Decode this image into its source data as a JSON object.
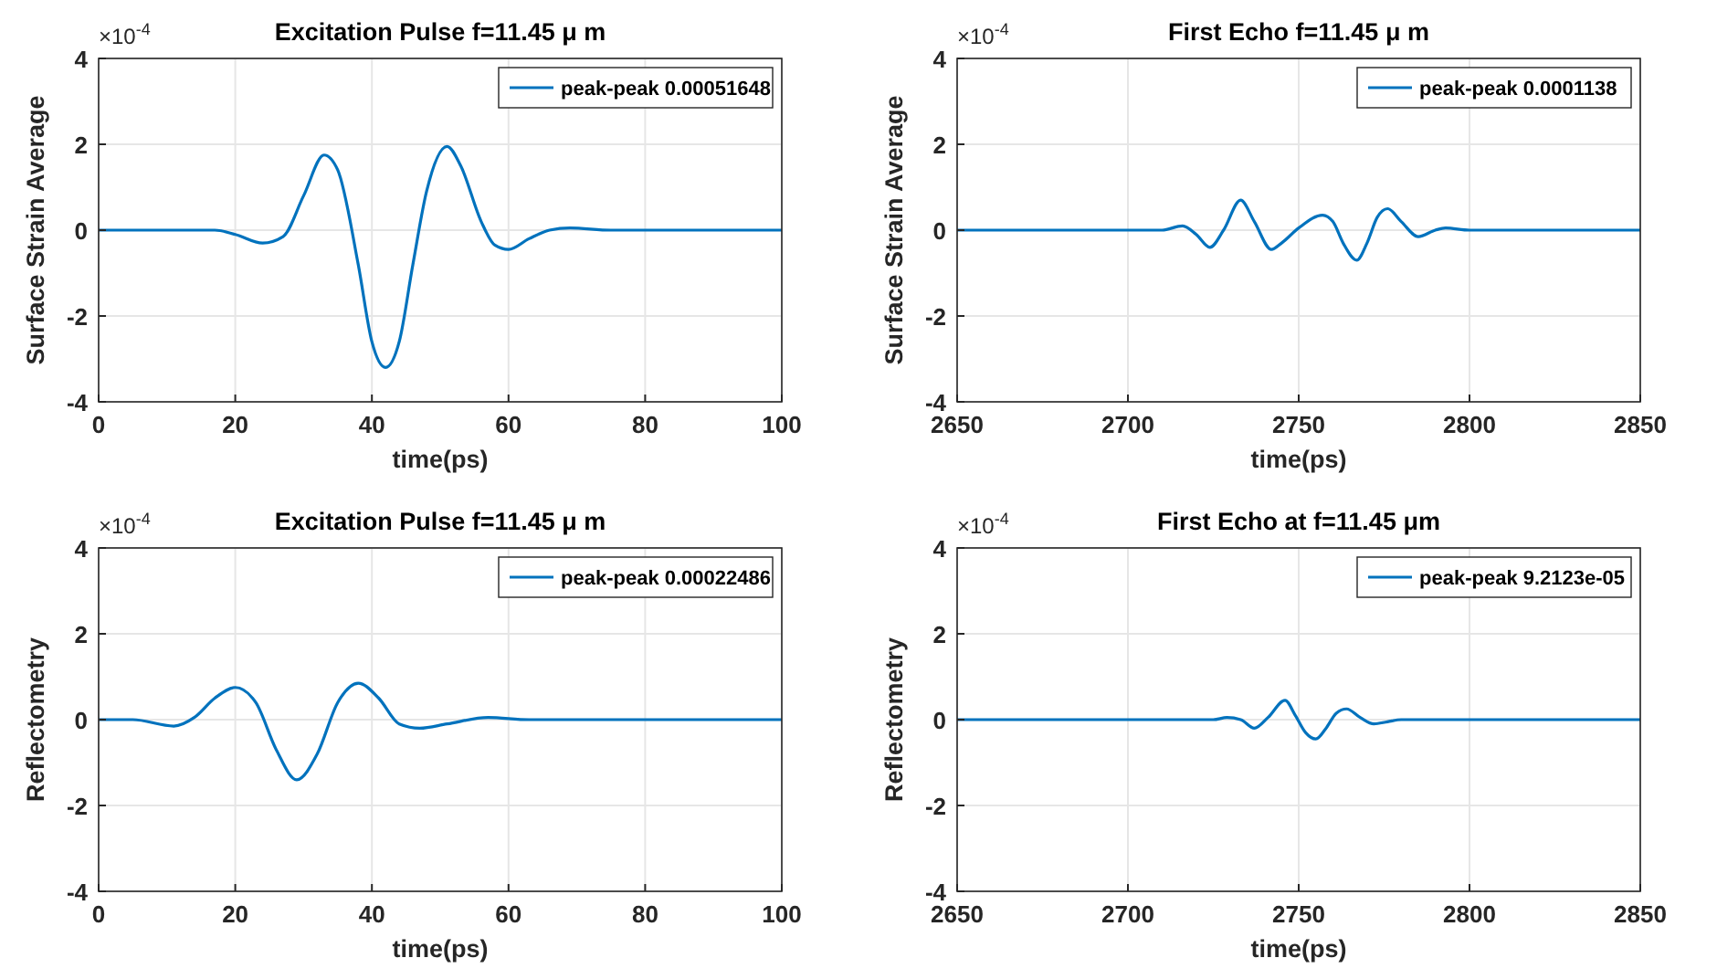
{
  "chart_data": [
    {
      "type": "line",
      "title": "Excitation Pulse f=11.45 μ m",
      "xlabel": "time(ps)",
      "ylabel": "Surface Strain Average",
      "annotations": [
        "×10$^{-4}$"
      ],
      "xlim": [
        0,
        100
      ],
      "xticks": [
        0,
        20,
        40,
        60,
        80,
        100
      ],
      "ylim": [
        -4,
        4
      ],
      "yticks": [
        -4,
        -2,
        0,
        2,
        4
      ],
      "grid": true,
      "legend": "top right",
      "line_style": "solid",
      "marker": "none",
      "series": [
        {
          "name": "peak-peak 0.00051648",
          "color": "#0072bd",
          "x": [
            0,
            10,
            17,
            20,
            24,
            27,
            30,
            33,
            35,
            38,
            40,
            42,
            44,
            46,
            48,
            51,
            53,
            56,
            58,
            60,
            63,
            66,
            69,
            75,
            100
          ],
          "values": [
            0,
            0,
            0,
            -0.1,
            -0.3,
            -0.15,
            0.8,
            1.75,
            1.4,
            -0.8,
            -2.6,
            -3.2,
            -2.6,
            -0.8,
            0.9,
            1.95,
            1.5,
            0.2,
            -0.35,
            -0.45,
            -0.2,
            0,
            0.05,
            0,
            0
          ]
        }
      ]
    },
    {
      "type": "line",
      "title": "First Echo f=11.45 μ m",
      "xlabel": "time(ps)",
      "ylabel": "Surface Strain Average",
      "annotations": [
        "×10$^{-4}$"
      ],
      "xlim": [
        2650,
        2850
      ],
      "xticks": [
        2650,
        2700,
        2750,
        2800,
        2850
      ],
      "ylim": [
        -4,
        4
      ],
      "yticks": [
        -4,
        -2,
        0,
        2,
        4
      ],
      "grid": true,
      "legend": "top right",
      "line_style": "solid",
      "marker": "none",
      "series": [
        {
          "name": "peak-peak 0.0001138",
          "color": "#0072bd",
          "x": [
            2650,
            2710,
            2716,
            2720,
            2724,
            2728,
            2733,
            2737,
            2742,
            2745,
            2750,
            2757,
            2760,
            2763,
            2767,
            2770,
            2773,
            2776,
            2780,
            2785,
            2790,
            2793,
            2800,
            2850
          ],
          "values": [
            0,
            0,
            0.1,
            -0.1,
            -0.4,
            0,
            0.7,
            0.2,
            -0.45,
            -0.3,
            0.05,
            0.35,
            0.2,
            -0.3,
            -0.7,
            -0.3,
            0.3,
            0.5,
            0.2,
            -0.15,
            0,
            0.05,
            0,
            0
          ]
        }
      ]
    },
    {
      "type": "line",
      "title": "Excitation Pulse f=11.45 μ m",
      "xlabel": "time(ps)",
      "ylabel": "Reflectometry",
      "annotations": [
        "×10$^{-4}$"
      ],
      "xlim": [
        0,
        100
      ],
      "xticks": [
        0,
        20,
        40,
        60,
        80,
        100
      ],
      "ylim": [
        -4,
        4
      ],
      "yticks": [
        -4,
        -2,
        0,
        2,
        4
      ],
      "grid": true,
      "legend": "top right",
      "line_style": "solid",
      "marker": "none",
      "series": [
        {
          "name": "peak-peak 0.00022486",
          "color": "#0072bd",
          "x": [
            0,
            5,
            11,
            14,
            17,
            20,
            23,
            26,
            29,
            32,
            35,
            38,
            41,
            44,
            47,
            51,
            57,
            63,
            100
          ],
          "values": [
            0,
            0,
            -0.15,
            0.05,
            0.5,
            0.75,
            0.4,
            -0.7,
            -1.4,
            -0.8,
            0.4,
            0.85,
            0.5,
            -0.1,
            -0.2,
            -0.1,
            0.05,
            0,
            0
          ]
        }
      ]
    },
    {
      "type": "line",
      "title": "First Echo at f=11.45 μm",
      "xlabel": "time(ps)",
      "ylabel": "Reflectometry",
      "annotations": [
        "×10$^{-4}$"
      ],
      "xlim": [
        2650,
        2850
      ],
      "xticks": [
        2650,
        2700,
        2750,
        2800,
        2850
      ],
      "ylim": [
        -4,
        4
      ],
      "yticks": [
        -4,
        -2,
        0,
        2,
        4
      ],
      "grid": true,
      "legend": "top right",
      "line_style": "solid",
      "marker": "none",
      "series": [
        {
          "name": "peak-peak 9.2123e-05",
          "color": "#0072bd",
          "x": [
            2650,
            2725,
            2729,
            2733,
            2737,
            2741,
            2746,
            2749,
            2752,
            2755,
            2758,
            2761,
            2764,
            2768,
            2772,
            2776,
            2780,
            2850
          ],
          "values": [
            0,
            0,
            0.05,
            0,
            -0.2,
            0.05,
            0.45,
            0.1,
            -0.3,
            -0.45,
            -0.2,
            0.15,
            0.25,
            0.05,
            -0.1,
            -0.05,
            0,
            0
          ]
        }
      ]
    }
  ]
}
